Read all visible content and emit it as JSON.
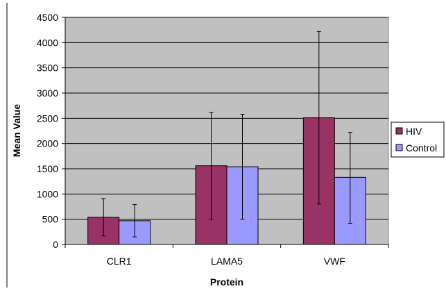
{
  "chart_data": {
    "type": "bar",
    "title": "",
    "xlabel": "Protein",
    "ylabel": "Mean Value",
    "categories": [
      "CLR1",
      "LAMA5",
      "VWF"
    ],
    "ylim": [
      0,
      4500
    ],
    "ytick_step": 500,
    "y_ticks": [
      "0",
      "500",
      "1000",
      "1500",
      "2000",
      "2500",
      "3000",
      "3500",
      "4000",
      "4500"
    ],
    "grid": true,
    "legend_position": "right",
    "series": [
      {
        "name": "HIV",
        "color": "#993366",
        "values": [
          540,
          1560,
          2510
        ],
        "error_low": [
          170,
          500,
          800
        ],
        "error_high": [
          910,
          2620,
          4220
        ]
      },
      {
        "name": "Control",
        "color": "#9999ff",
        "values": [
          470,
          1540,
          1330
        ],
        "error_low": [
          150,
          500,
          420
        ],
        "error_high": [
          790,
          2580,
          2220
        ]
      }
    ]
  }
}
